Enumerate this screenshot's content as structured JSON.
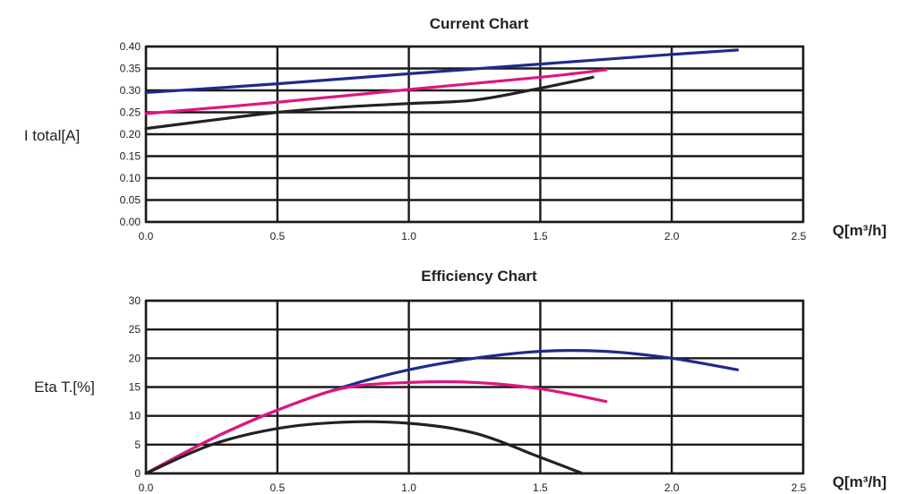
{
  "chart_data": [
    {
      "type": "line",
      "title": "Current Chart",
      "ylabel": "I total[A]",
      "xlabel": "Q[m³/h]",
      "xlim": [
        0,
        2.5
      ],
      "ylim": [
        0,
        0.4
      ],
      "x_ticks": [
        "0.0",
        "0.5",
        "1.0",
        "1.5",
        "2.0",
        "2.5"
      ],
      "y_ticks": [
        "0.00",
        "0.05",
        "0.10",
        "0.15",
        "0.20",
        "0.25",
        "0.30",
        "0.35",
        "0.40"
      ],
      "grid": true,
      "series": [
        {
          "color": "#1f2a8a",
          "x": [
            0.0,
            0.5,
            1.0,
            1.5,
            2.0,
            2.25
          ],
          "y": [
            0.295,
            0.315,
            0.338,
            0.36,
            0.382,
            0.392
          ]
        },
        {
          "color": "#e0157f",
          "x": [
            0.0,
            0.5,
            1.0,
            1.5,
            1.75
          ],
          "y": [
            0.247,
            0.273,
            0.302,
            0.33,
            0.347
          ]
        },
        {
          "color": "#222222",
          "x": [
            0.0,
            0.25,
            0.5,
            0.75,
            1.0,
            1.25,
            1.5,
            1.7
          ],
          "y": [
            0.213,
            0.232,
            0.25,
            0.262,
            0.27,
            0.278,
            0.305,
            0.33
          ]
        }
      ]
    },
    {
      "type": "line",
      "title": "Efficiency Chart",
      "ylabel": "Eta T.[%]",
      "xlabel": "Q[m³/h]",
      "xlim": [
        0,
        2.5
      ],
      "ylim": [
        0,
        30
      ],
      "x_ticks": [
        "0.0",
        "0.5",
        "1.0",
        "1.5",
        "2.0",
        "2.5"
      ],
      "y_ticks": [
        "0",
        "5",
        "10",
        "15",
        "20",
        "25",
        "30"
      ],
      "grid": true,
      "series": [
        {
          "color": "#1f2a8a",
          "x": [
            0.0,
            0.25,
            0.5,
            0.75,
            1.0,
            1.25,
            1.5,
            1.75,
            2.0,
            2.25
          ],
          "y": [
            0,
            6,
            11,
            15,
            18,
            20,
            21.2,
            21.2,
            20,
            18
          ]
        },
        {
          "color": "#e0157f",
          "x": [
            0.0,
            0.25,
            0.5,
            0.75,
            1.0,
            1.25,
            1.5,
            1.75
          ],
          "y": [
            0,
            6,
            11,
            14.8,
            15.8,
            15.8,
            14.7,
            12.5
          ]
        },
        {
          "color": "#222222",
          "x": [
            0.0,
            0.25,
            0.5,
            0.75,
            1.0,
            1.25,
            1.5,
            1.66
          ],
          "y": [
            0,
            5,
            7.8,
            8.9,
            8.7,
            7,
            2.8,
            0
          ]
        }
      ]
    }
  ]
}
